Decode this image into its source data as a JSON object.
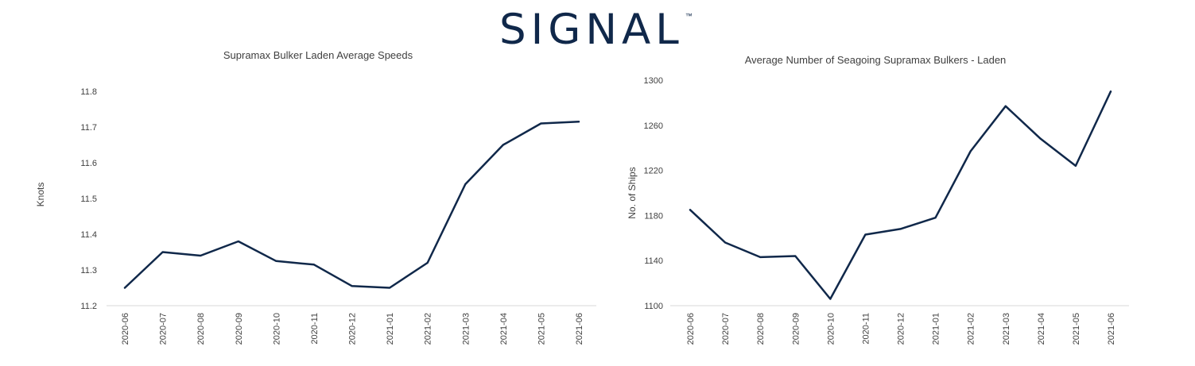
{
  "logo": {
    "text": "SIGNAL",
    "trademark": "™"
  },
  "colors": {
    "series_line": "#10284a",
    "axis_line": "#d9d9d9",
    "text": "#404040",
    "brand": "#10284a"
  },
  "chart_data": [
    {
      "type": "line",
      "title": "Supramax  Bulker  Laden Average Speeds",
      "xlabel": "",
      "ylabel": "Knots",
      "categories": [
        "2020-06",
        "2020-07",
        "2020-08",
        "2020-09",
        "2020-10",
        "2020-11",
        "2020-12",
        "2021-01",
        "2021-02",
        "2021-03",
        "2021-04",
        "2021-05",
        "2021-06"
      ],
      "yticks": [
        "11.2",
        "11.3",
        "11.4",
        "11.5",
        "11.6",
        "11.7",
        "11.8"
      ],
      "ylim": [
        11.2,
        11.8
      ],
      "grid": false,
      "legend": "none",
      "series": [
        {
          "values": [
            11.25,
            11.35,
            11.34,
            11.38,
            11.325,
            11.315,
            11.255,
            11.25,
            11.32,
            11.54,
            11.65,
            11.71,
            11.715
          ]
        }
      ]
    },
    {
      "type": "line",
      "title": "Average Number  of Seagoing Supramax Bulkers - Laden",
      "xlabel": "",
      "ylabel": "No. of Ships",
      "categories": [
        "2020-06",
        "2020-07",
        "2020-08",
        "2020-09",
        "2020-10",
        "2020-11",
        "2020-12",
        "2021-01",
        "2021-02",
        "2021-03",
        "2021-04",
        "2021-05",
        "2021-06"
      ],
      "yticks": [
        "1100",
        "1140",
        "1180",
        "1220",
        "1260",
        "1300"
      ],
      "ylim": [
        1100,
        1300
      ],
      "grid": false,
      "legend": "none",
      "series": [
        {
          "values": [
            1185,
            1156,
            1143,
            1144,
            1106,
            1163,
            1168,
            1178,
            1237,
            1277,
            1248,
            1224,
            1290
          ]
        }
      ]
    }
  ]
}
